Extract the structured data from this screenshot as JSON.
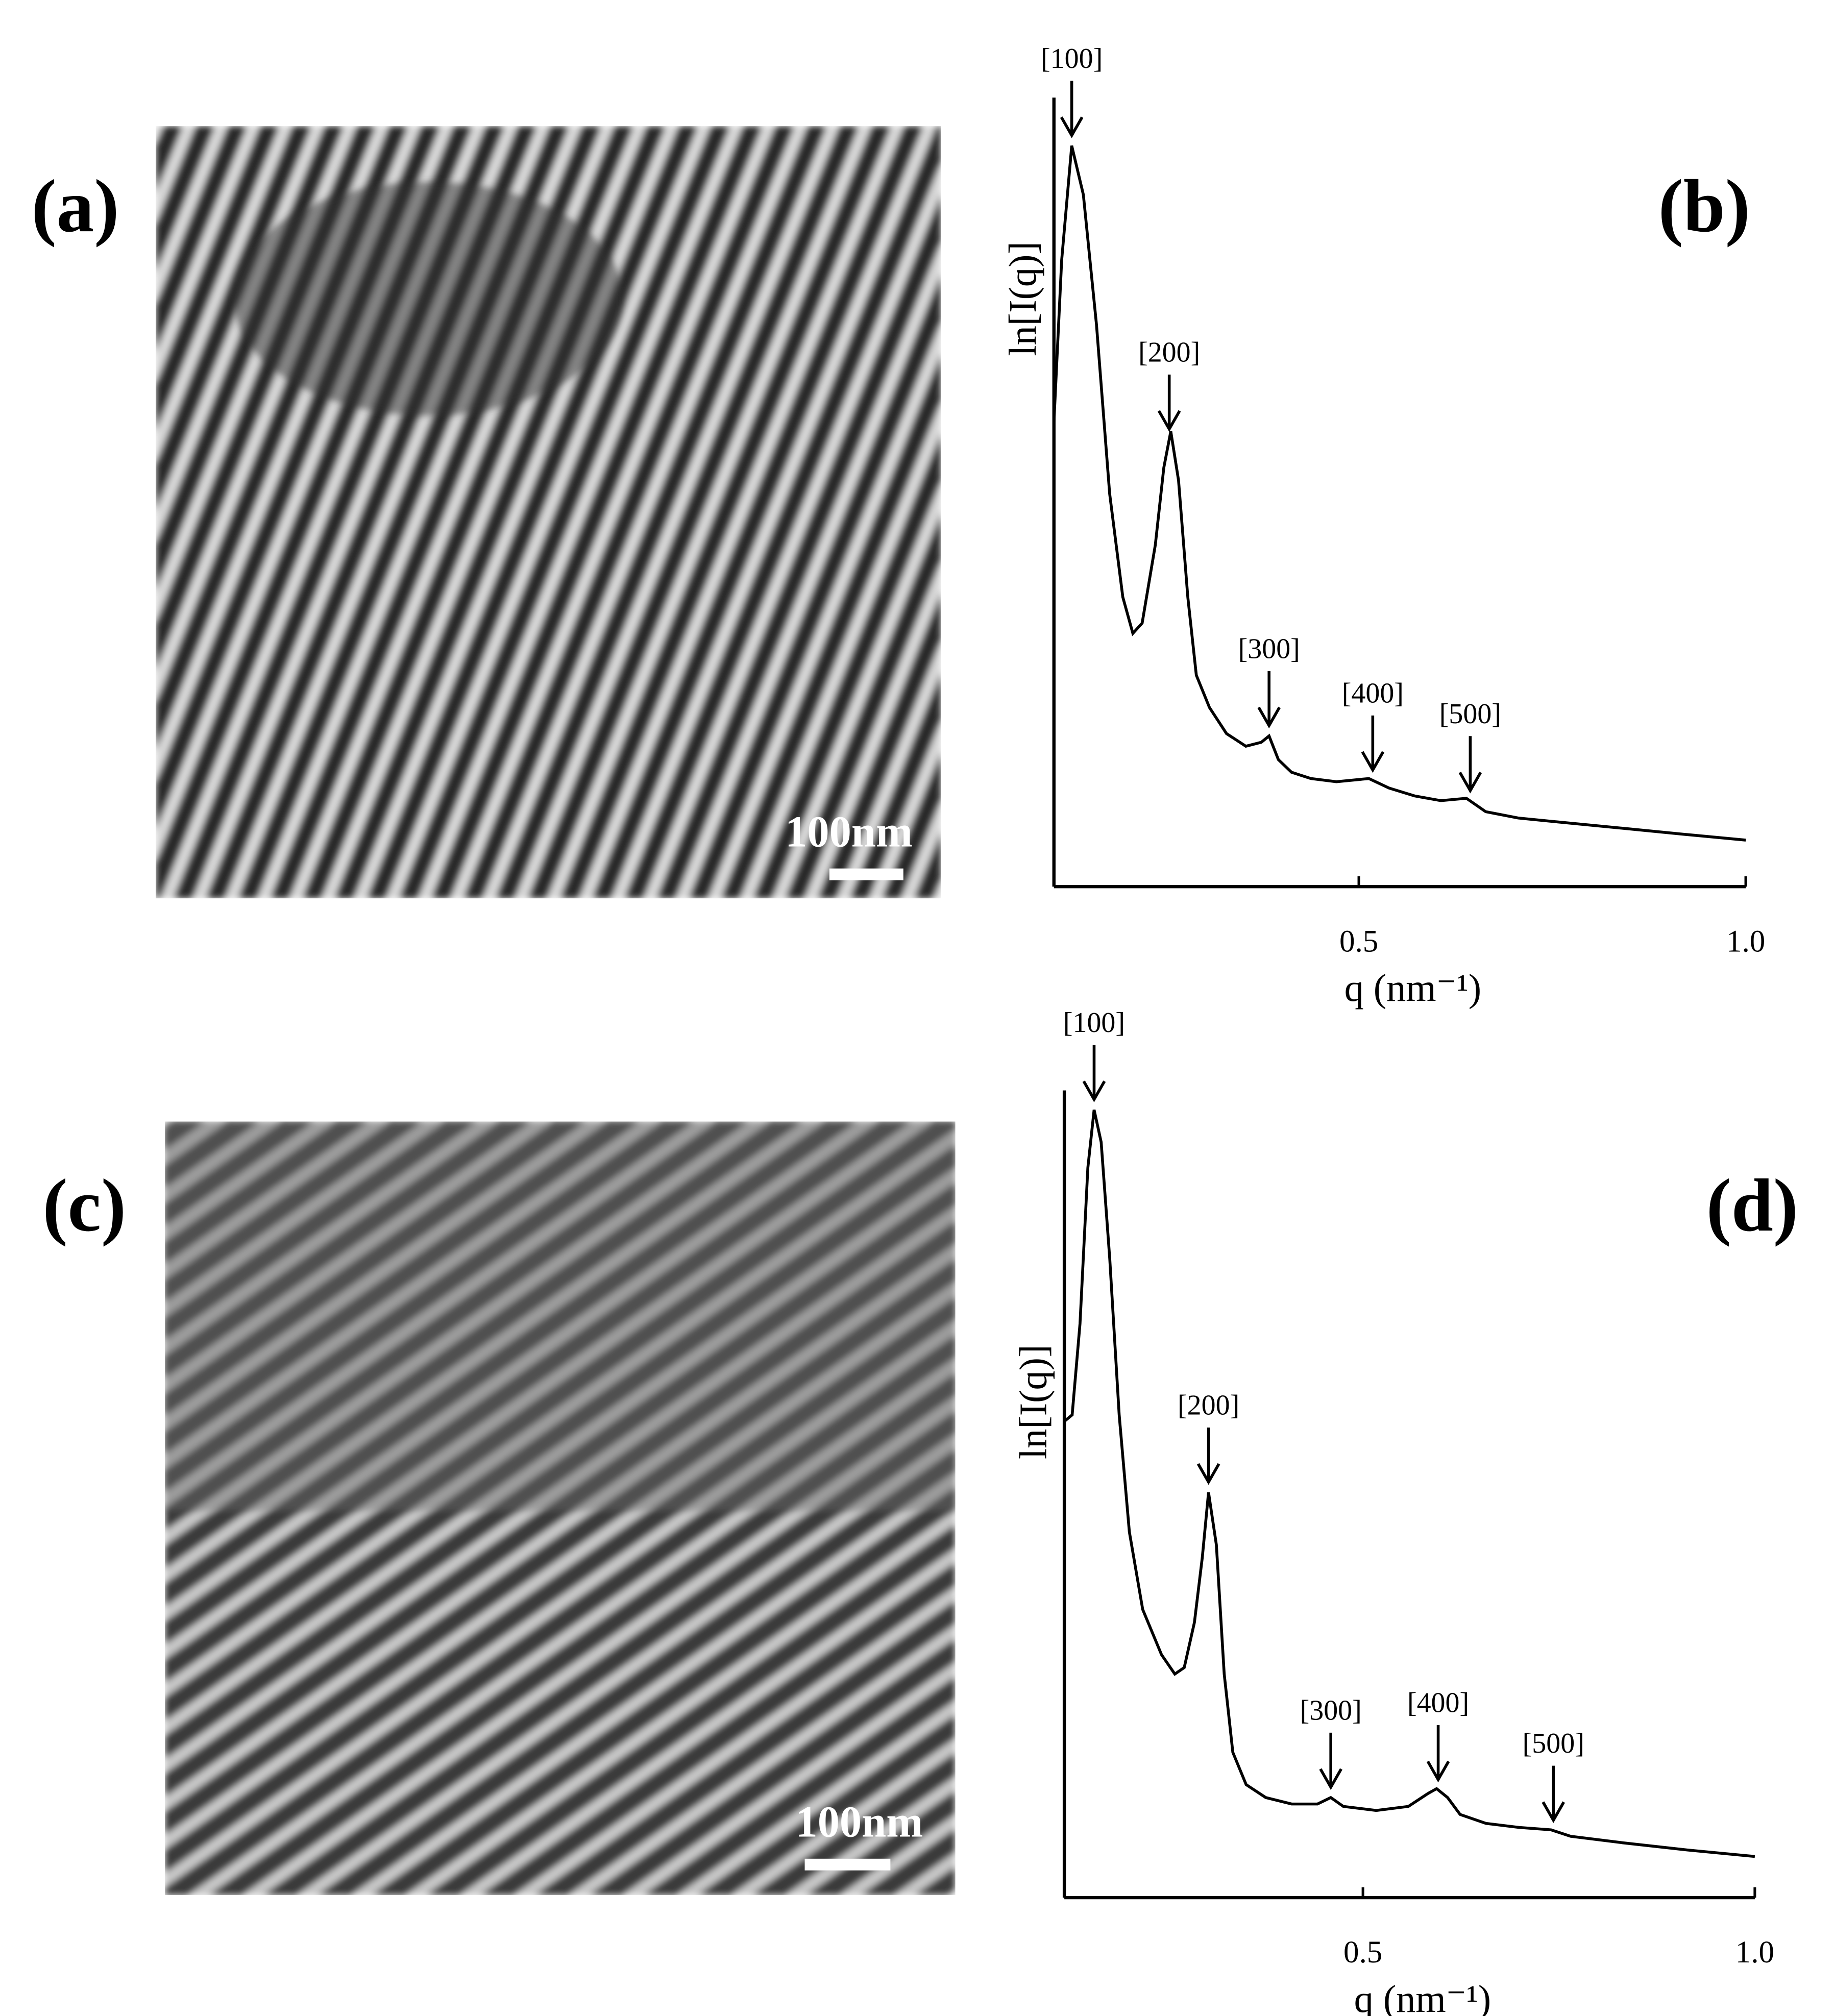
{
  "panels": [
    {
      "label": "(a)",
      "scale_bar": "100nm"
    },
    {
      "label": "(c)",
      "scale_bar": "100nm"
    }
  ],
  "chart_data": [
    {
      "type": "line",
      "panel_label": "(b)",
      "xlabel": "q (nm⁻¹)",
      "ylabel": "ln[I(q)]",
      "color": "#000000",
      "xlim": [
        0.106,
        1.0
      ],
      "ylim": [
        0,
        1
      ],
      "xticks": [
        0.5,
        {
          "value": 1,
          "label": "1.0"
        }
      ],
      "x": [
        0.106,
        0.116,
        0.129,
        0.144,
        0.161,
        0.178,
        0.195,
        0.208,
        0.22,
        0.237,
        0.248,
        0.257,
        0.267,
        0.279,
        0.29,
        0.307,
        0.329,
        0.354,
        0.374,
        0.384,
        0.396,
        0.413,
        0.438,
        0.471,
        0.513,
        0.539,
        0.572,
        0.606,
        0.639,
        0.664,
        0.706,
        0.757,
        0.841,
        0.924,
        1.0
      ],
      "values": [
        0.589,
        0.794,
        0.939,
        0.877,
        0.712,
        0.498,
        0.367,
        0.321,
        0.334,
        0.433,
        0.531,
        0.577,
        0.515,
        0.367,
        0.268,
        0.227,
        0.194,
        0.178,
        0.183,
        0.191,
        0.161,
        0.145,
        0.137,
        0.133,
        0.137,
        0.125,
        0.115,
        0.109,
        0.112,
        0.095,
        0.087,
        0.082,
        0.074,
        0.066,
        0.059
      ],
      "annotations": [
        {
          "text": "[100]",
          "x": 0.129
        },
        {
          "text": "[200]",
          "x": 0.255
        },
        {
          "text": "[300]",
          "x": 0.384
        },
        {
          "text": "[400]",
          "x": 0.518
        },
        {
          "text": "[500]",
          "x": 0.644
        }
      ]
    },
    {
      "type": "line",
      "panel_label": "(d)",
      "xlabel": "q (nm⁻¹)",
      "ylabel": "ln[I(q)]",
      "color": "#000000",
      "xlim": [
        0.119,
        1.0
      ],
      "ylim": [
        0,
        1
      ],
      "xticks": [
        0.5,
        {
          "value": 1,
          "label": "1.0"
        }
      ],
      "x": [
        0.119,
        0.129,
        0.139,
        0.149,
        0.157,
        0.166,
        0.177,
        0.189,
        0.202,
        0.219,
        0.243,
        0.26,
        0.272,
        0.285,
        0.295,
        0.303,
        0.313,
        0.323,
        0.334,
        0.351,
        0.376,
        0.409,
        0.442,
        0.459,
        0.475,
        0.517,
        0.558,
        0.583,
        0.594,
        0.608,
        0.624,
        0.657,
        0.699,
        0.74,
        0.765,
        0.831,
        0.914,
        1.0
      ],
      "values": [
        0.59,
        0.598,
        0.711,
        0.904,
        0.976,
        0.936,
        0.791,
        0.598,
        0.453,
        0.357,
        0.301,
        0.277,
        0.285,
        0.341,
        0.421,
        0.502,
        0.437,
        0.277,
        0.18,
        0.14,
        0.124,
        0.116,
        0.116,
        0.124,
        0.113,
        0.108,
        0.113,
        0.129,
        0.135,
        0.124,
        0.103,
        0.092,
        0.087,
        0.084,
        0.076,
        0.068,
        0.059,
        0.051
      ],
      "annotations": [
        {
          "text": "[100]",
          "x": 0.157
        },
        {
          "text": "[200]",
          "x": 0.303
        },
        {
          "text": "[300]",
          "x": 0.459
        },
        {
          "text": "[400]",
          "x": 0.596
        },
        {
          "text": "[500]",
          "x": 0.743
        }
      ]
    }
  ]
}
